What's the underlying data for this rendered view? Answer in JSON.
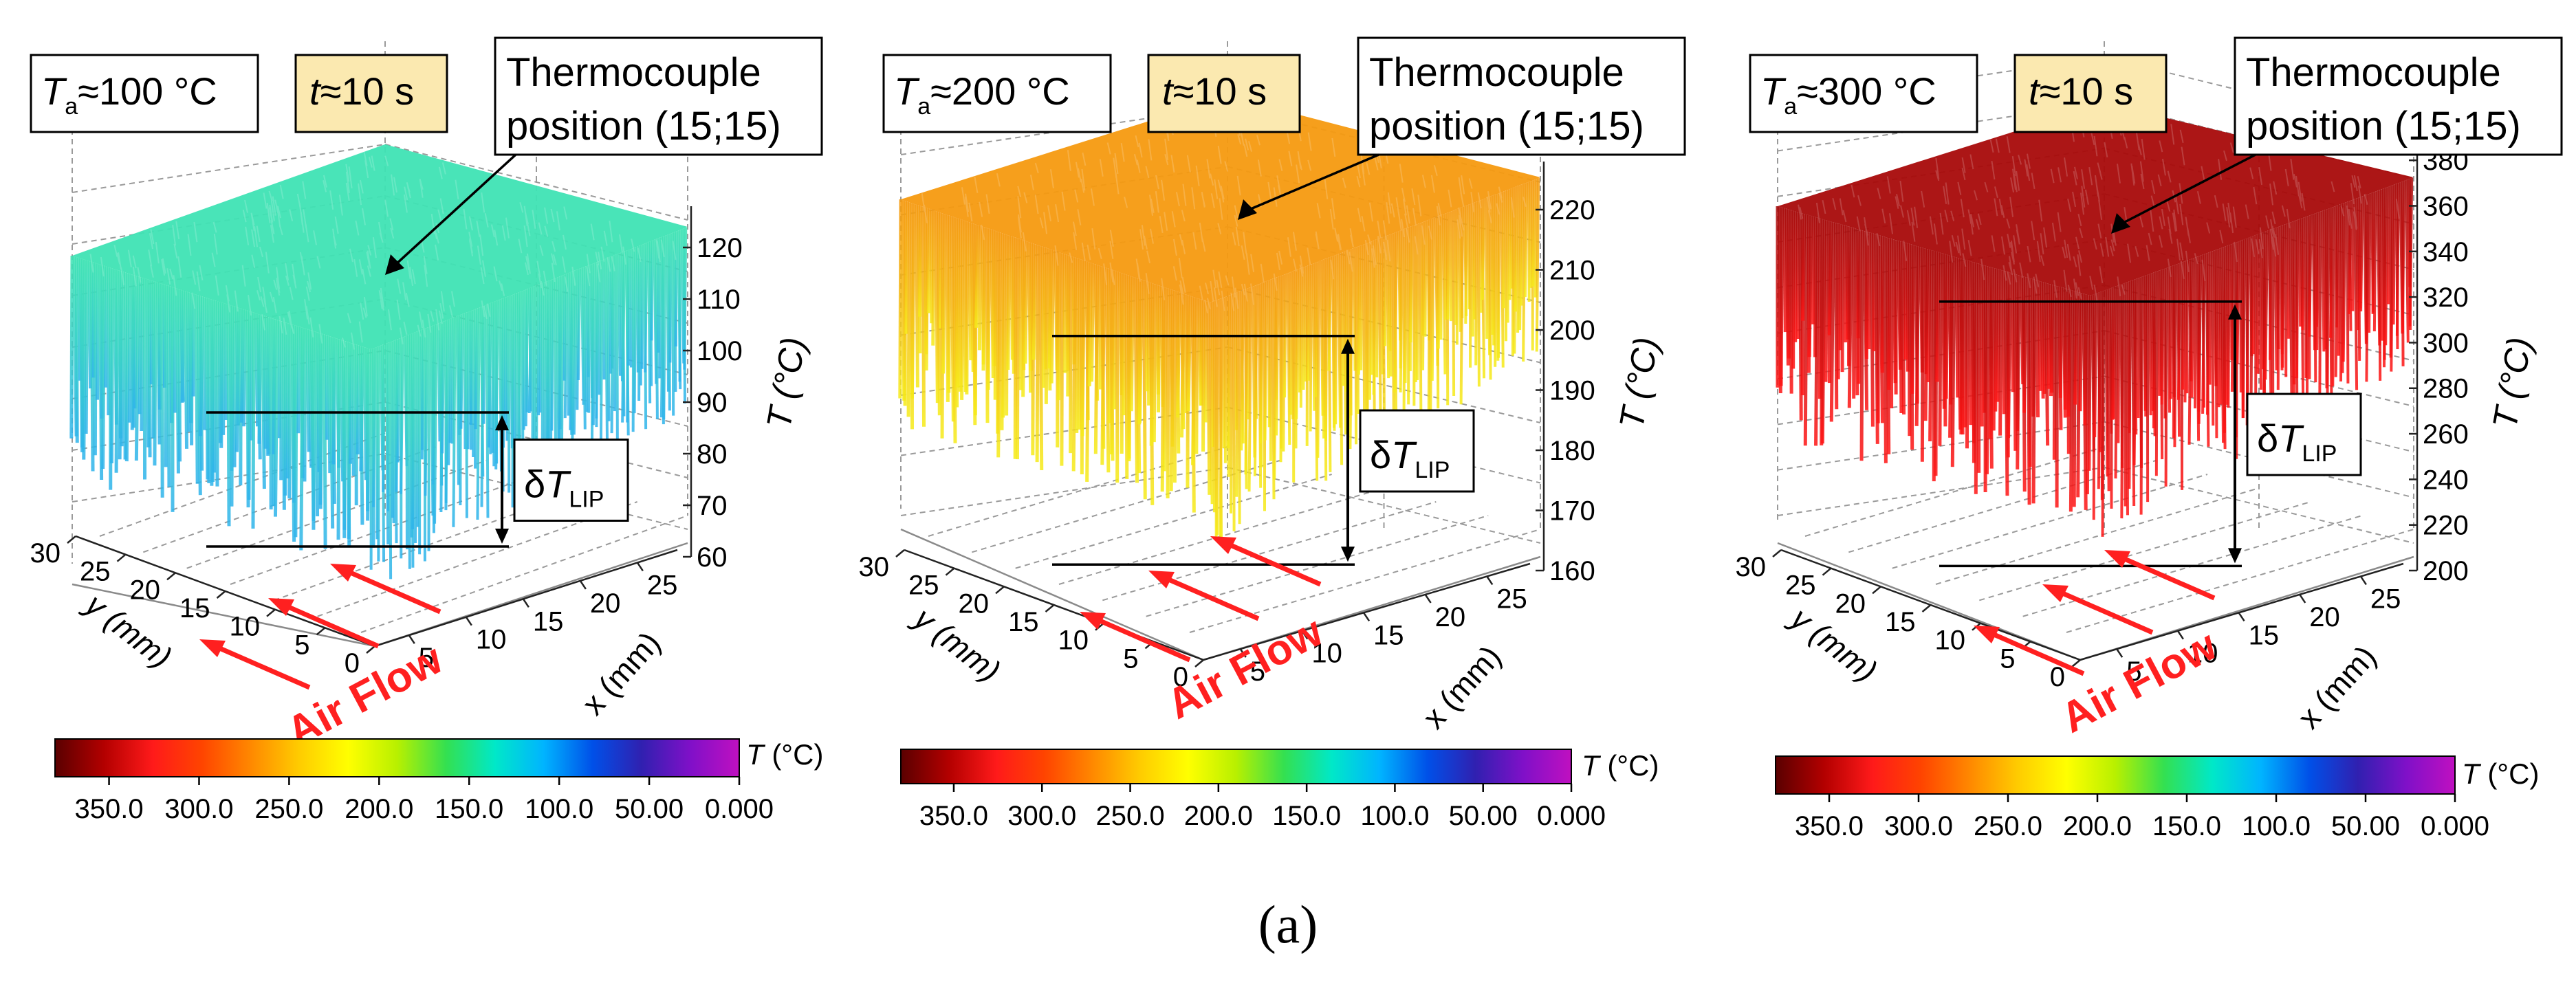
{
  "figure_label": "(a)",
  "colors": {
    "panel1_top": "#3fe3b4",
    "panel1_low": "#2fb4ec",
    "panel2_top": "#f59a10",
    "panel2_low": "#f6ec1a",
    "panel3_top": "#a80a0a",
    "panel3_low": "#ff1515",
    "air_flow": "#ff2020",
    "time_box": "#fbe9b0"
  },
  "colorbar": {
    "stops": [
      "#5a0000",
      "#b30000",
      "#ff1a1a",
      "#ff4400",
      "#ff8800",
      "#ffcc00",
      "#ffff00",
      "#b8f000",
      "#34e050",
      "#00e8c8",
      "#00b4ff",
      "#0050e8",
      "#3020b0",
      "#8010c8",
      "#c010c0"
    ],
    "ticks": [
      "350.0",
      "300.0",
      "250.0",
      "200.0",
      "150.0",
      "100.0",
      "50.00",
      "0.000"
    ],
    "tick_values": [
      350,
      300,
      250,
      200,
      150,
      100,
      50,
      0
    ],
    "range": [
      380,
      0
    ]
  },
  "chart_data": [
    {
      "type": "surface3d",
      "title": "",
      "ambient": {
        "symbol": "T",
        "sub": "a",
        "text": "≈100 °C"
      },
      "time": {
        "symbol": "t",
        "text": "≈10 s"
      },
      "annotation": [
        "Thermocouple",
        "position (15;15)"
      ],
      "delta": {
        "symbol": "δT",
        "sub": "LIP"
      },
      "air_flow_label": "Air Flow",
      "xlabel": "x (mm)",
      "ylabel": "y (mm)",
      "zlabel": "T (°C)",
      "x_ticks": [
        "5",
        "10",
        "15",
        "20",
        "25"
      ],
      "y_ticks": [
        "0",
        "5",
        "10",
        "15",
        "20",
        "25",
        "30"
      ],
      "z_ticks": [
        "60",
        "70",
        "80",
        "90",
        "100",
        "110",
        "120"
      ],
      "zlim": [
        60,
        128
      ],
      "plateau_T": 110,
      "spike_min_T": 70,
      "delta_top_T": 88,
      "delta_bottom_T": 62,
      "colorbar_label": "T (°C)"
    },
    {
      "type": "surface3d",
      "title": "",
      "ambient": {
        "symbol": "T",
        "sub": "a",
        "text": "≈200 °C"
      },
      "time": {
        "symbol": "t",
        "text": "≈10 s"
      },
      "annotation": [
        "Thermocouple",
        "position (15;15)"
      ],
      "delta": {
        "symbol": "δT",
        "sub": "LIP"
      },
      "air_flow_label": "Air Flow",
      "xlabel": "x (mm)",
      "ylabel": "y (mm)",
      "zlabel": "T (°C)",
      "x_ticks": [
        "5",
        "10",
        "15",
        "20",
        "25"
      ],
      "y_ticks": [
        "0",
        "5",
        "10",
        "15",
        "20",
        "25",
        "30"
      ],
      "z_ticks": [
        "160",
        "170",
        "180",
        "190",
        "200",
        "210",
        "220"
      ],
      "zlim": [
        160,
        228
      ],
      "plateau_T": 212,
      "spike_min_T": 162,
      "delta_top_T": 199,
      "delta_bottom_T": 161,
      "colorbar_label": "T (°C)"
    },
    {
      "type": "surface3d",
      "title": "",
      "ambient": {
        "symbol": "T",
        "sub": "a",
        "text": "≈300 °C"
      },
      "time": {
        "symbol": "t",
        "text": "≈10 s"
      },
      "annotation": [
        "Thermocouple",
        "position (15;15)"
      ],
      "delta": {
        "symbol": "δT",
        "sub": "LIP"
      },
      "air_flow_label": "Air Flow",
      "xlabel": "x (mm)",
      "ylabel": "y (mm)",
      "zlabel": "T (°C)",
      "x_ticks": [
        "5",
        "10",
        "15",
        "20",
        "25"
      ],
      "y_ticks": [
        "0",
        "5",
        "10",
        "15",
        "20",
        "25",
        "30"
      ],
      "z_ticks": [
        "200",
        "220",
        "240",
        "260",
        "280",
        "300",
        "320",
        "340",
        "360",
        "380"
      ],
      "zlim": [
        200,
        390
      ],
      "plateau_T": 350,
      "spike_min_T": 205,
      "delta_top_T": 318,
      "delta_bottom_T": 202,
      "colorbar_label": "T (°C)"
    }
  ]
}
